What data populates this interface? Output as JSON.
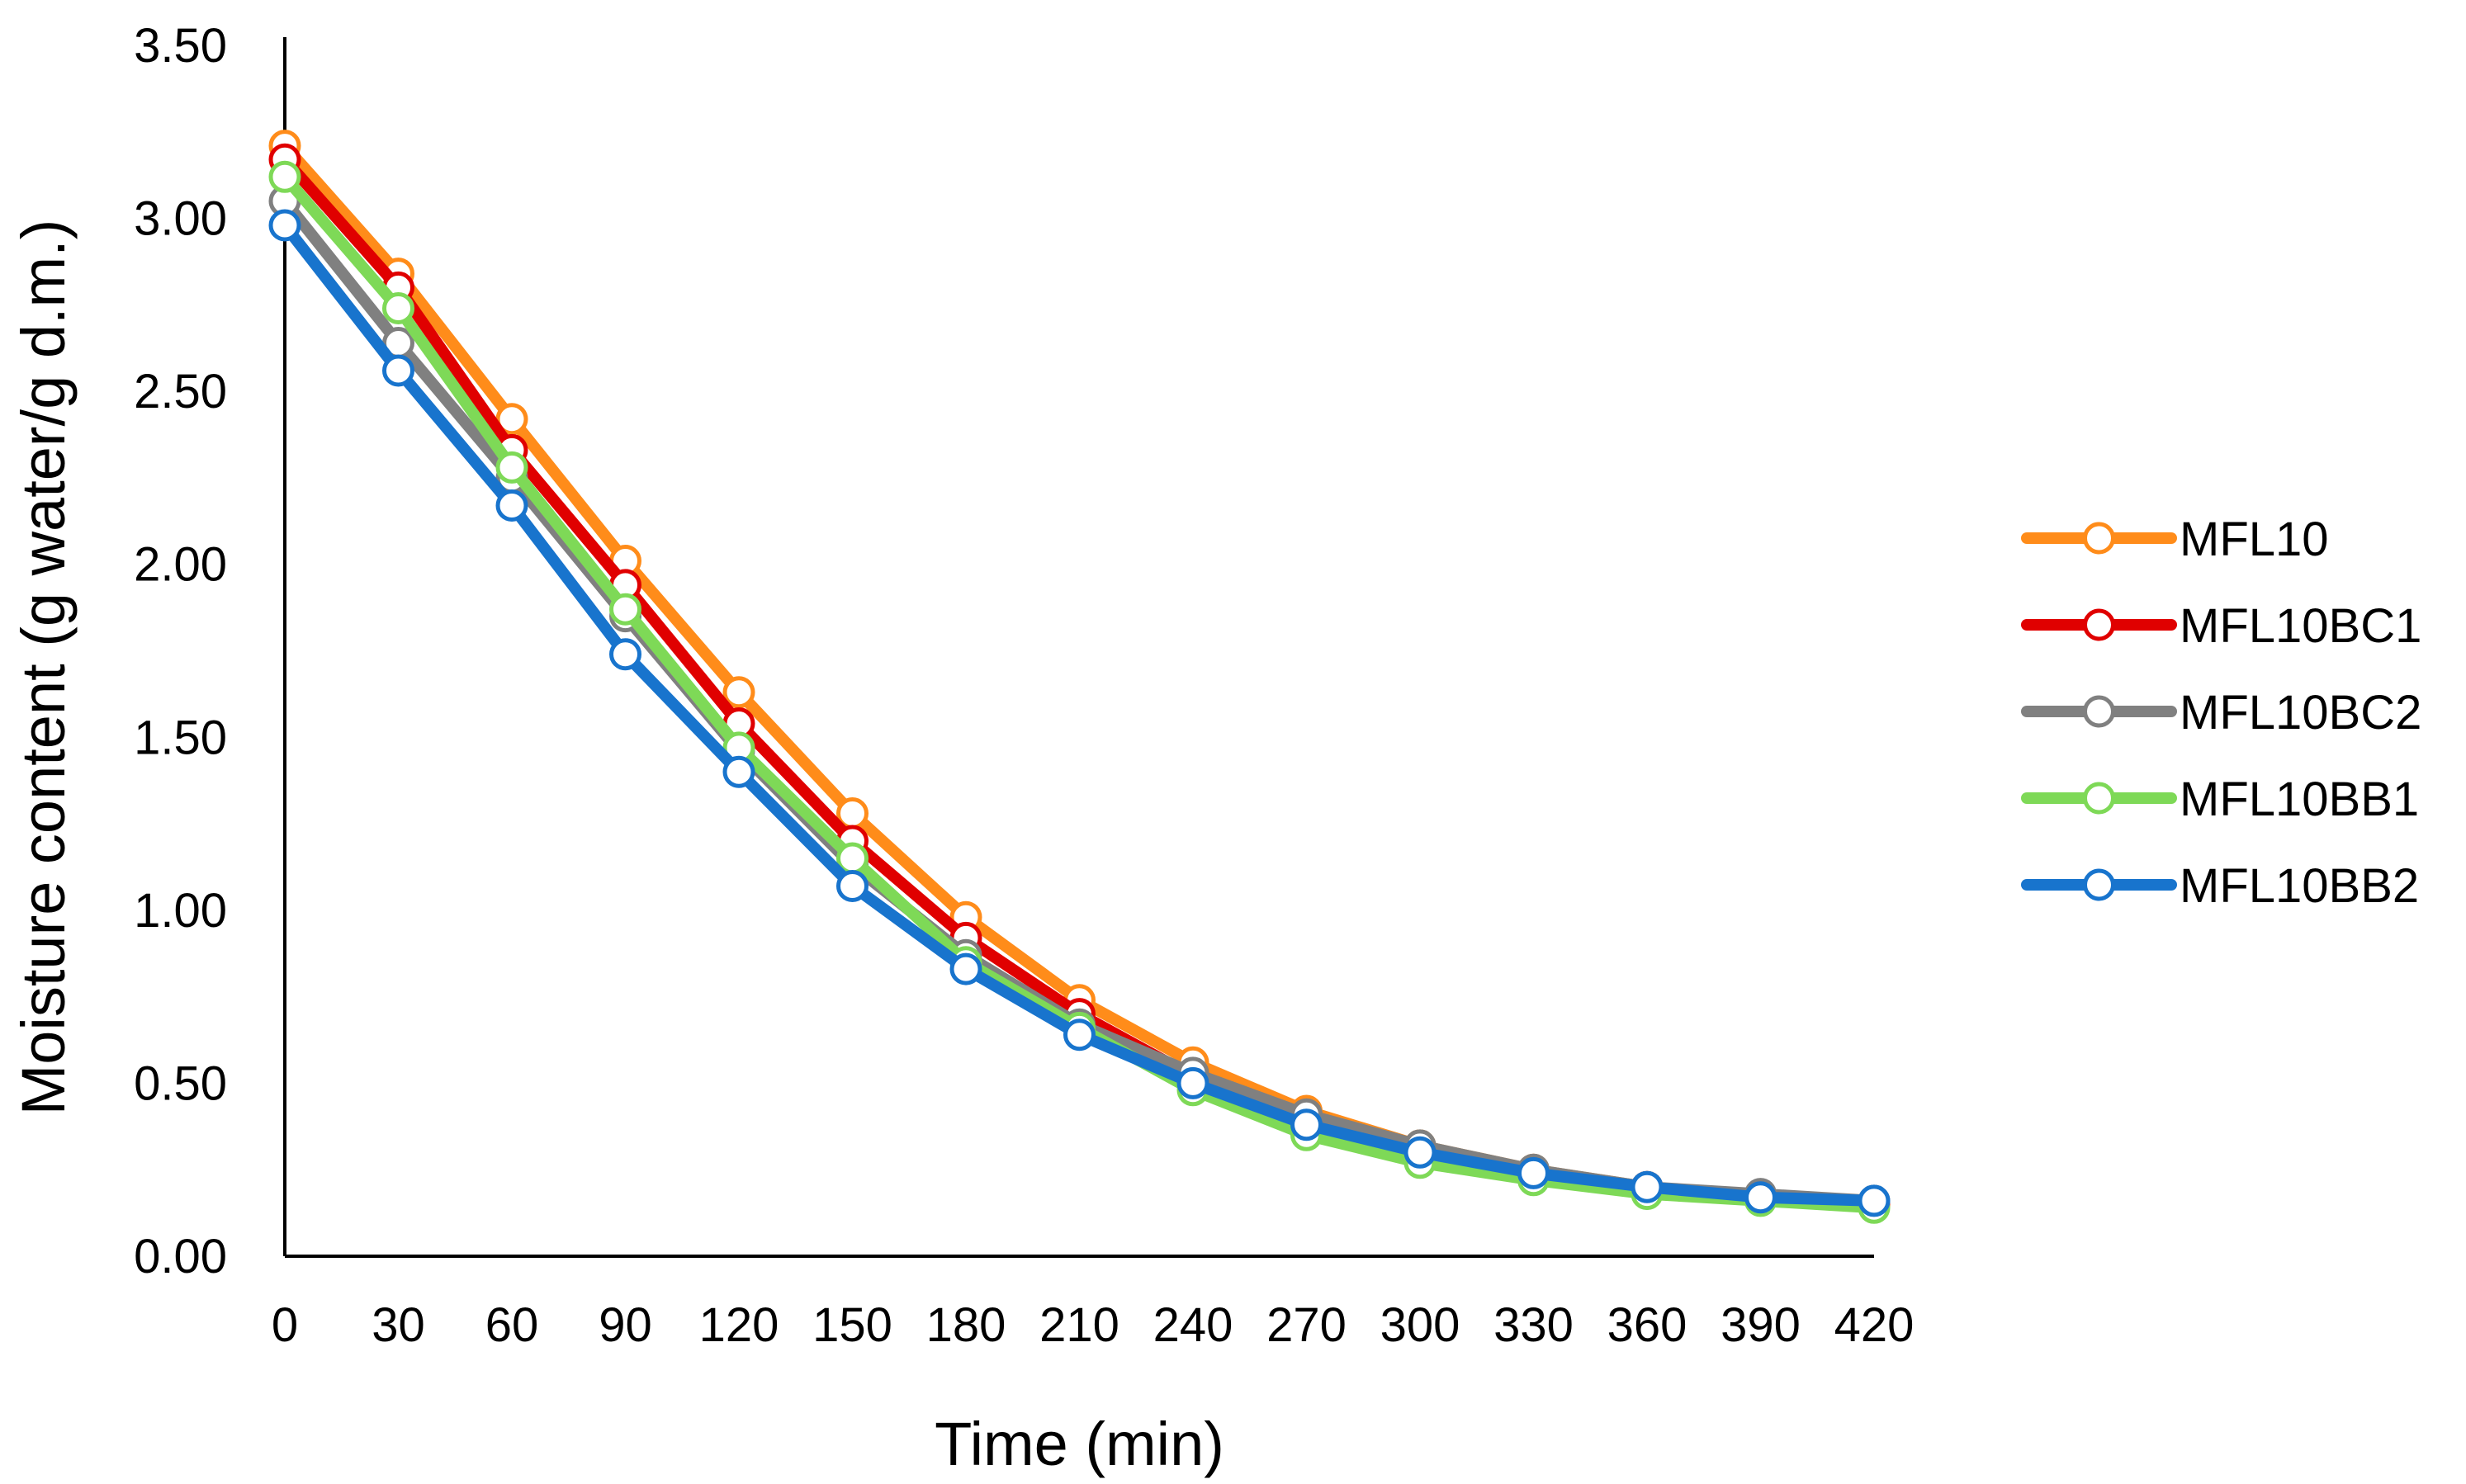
{
  "chart_data": {
    "type": "line",
    "title": "",
    "xlabel": "Time (min)",
    "ylabel": "Moisture content (g water/g d.m.)",
    "x": [
      0,
      30,
      60,
      90,
      120,
      150,
      180,
      210,
      240,
      270,
      300,
      330,
      360,
      390,
      420
    ],
    "x_tick_labels": [
      "0",
      "30",
      "60",
      "90",
      "120",
      "150",
      "180",
      "210",
      "240",
      "270",
      "300",
      "330",
      "360",
      "390",
      "420"
    ],
    "y_tick_labels": [
      "0.00",
      "0.50",
      "1.00",
      "1.50",
      "2.00",
      "2.50",
      "3.00",
      "3.50"
    ],
    "y_ticks": [
      0,
      0.5,
      1.0,
      1.5,
      2.0,
      2.5,
      3.0,
      3.5
    ],
    "xlim": [
      0,
      420
    ],
    "ylim": [
      0,
      3.5
    ],
    "grid": false,
    "legend_position": "right",
    "series": [
      {
        "name": "MFL10",
        "color": "#ff8c1a",
        "values": [
          3.21,
          2.84,
          2.42,
          2.01,
          1.63,
          1.28,
          0.98,
          0.74,
          0.56,
          0.42,
          0.32,
          0.25,
          0.2,
          0.17,
          0.15
        ]
      },
      {
        "name": "MFL10BC1",
        "color": "#e00000",
        "values": [
          3.17,
          2.8,
          2.33,
          1.94,
          1.54,
          1.2,
          0.92,
          0.7,
          0.52,
          0.4,
          0.31,
          0.24,
          0.2,
          0.17,
          0.15
        ]
      },
      {
        "name": "MFL10BC2",
        "color": "#808080",
        "values": [
          3.05,
          2.64,
          2.25,
          1.85,
          1.46,
          1.13,
          0.87,
          0.67,
          0.53,
          0.41,
          0.32,
          0.25,
          0.2,
          0.18,
          0.16
        ]
      },
      {
        "name": "MFL10BB1",
        "color": "#7ed957",
        "values": [
          3.12,
          2.74,
          2.28,
          1.87,
          1.47,
          1.15,
          0.85,
          0.66,
          0.48,
          0.35,
          0.27,
          0.22,
          0.18,
          0.16,
          0.14
        ]
      },
      {
        "name": "MFL10BB2",
        "color": "#1874cd",
        "values": [
          2.98,
          2.56,
          2.17,
          1.74,
          1.4,
          1.07,
          0.83,
          0.64,
          0.5,
          0.38,
          0.3,
          0.24,
          0.2,
          0.17,
          0.16
        ]
      }
    ]
  }
}
